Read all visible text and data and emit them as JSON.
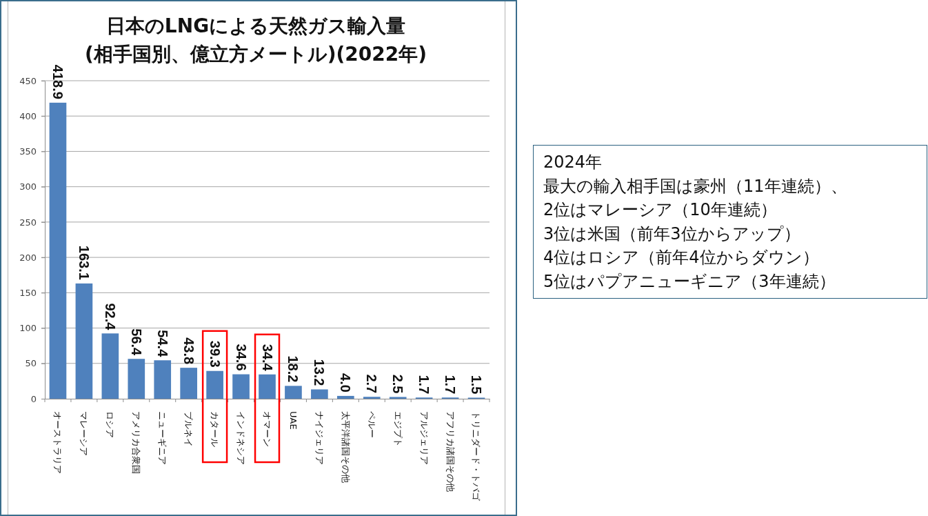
{
  "chart_data": {
    "type": "bar",
    "title": "日本のLNGによる天然ガス輸入量\n(相手国別、億立方メートル)(2022年)",
    "categories": [
      "オーストラリア",
      "マレーシア",
      "ロシア",
      "アメリカ合衆国",
      "ニューギニア",
      "ブルネイ",
      "カタール",
      "インドネシア",
      "オマーン",
      "UAE",
      "ナイジェリア",
      "太平洋諸国その他",
      "ペルー",
      "エジプト",
      "アルジェリア",
      "アフリカ諸国その他",
      "トリニダード・トバゴ"
    ],
    "values": [
      418.9,
      163.1,
      92.4,
      56.4,
      54.4,
      43.8,
      39.3,
      34.6,
      34.4,
      18.2,
      13.2,
      4.0,
      2.7,
      2.5,
      1.7,
      1.7,
      1.5
    ],
    "value_labels": [
      "418.9",
      "163.1",
      "92.4",
      "56.4",
      "54.4",
      "43.8",
      "39.3",
      "34.6",
      "34.4",
      "18.2",
      "13.2",
      "4.0",
      "2.7",
      "2.5",
      "1.7",
      "1.7",
      "1.5"
    ],
    "color": "#4f81bd",
    "ylim": [
      0,
      450
    ],
    "yticks": [
      0,
      50,
      100,
      150,
      200,
      250,
      300,
      350,
      400,
      450
    ],
    "grid": "y",
    "annotations": [
      "2024年",
      "最大の輸入相手国は豪州（11年連続）、",
      "2位はマレーシア（10年連続）",
      "3位は米国（前年3位からアップ）",
      "4位はロシア（前年4位からダウン）",
      "5位はパプアニューギニア（3年連続）"
    ]
  }
}
